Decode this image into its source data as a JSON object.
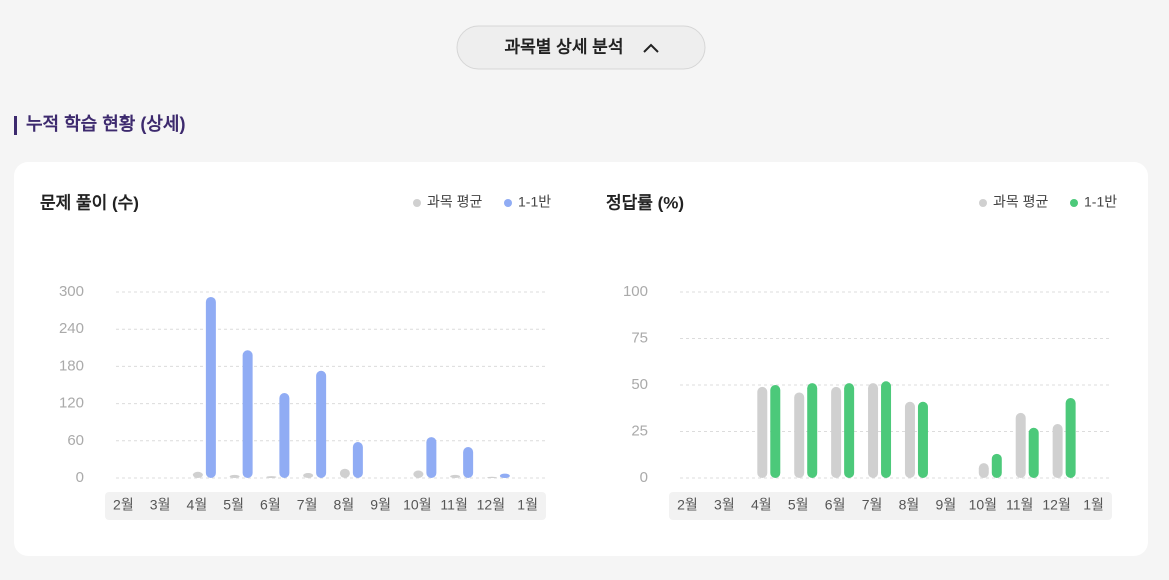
{
  "header": {
    "button": "과목별 상세 분석"
  },
  "section": {
    "title": "누적 학습 현황 (상세)"
  },
  "chart_data": [
    {
      "type": "bar",
      "title": "문제 풀이 (수)",
      "categories": [
        "2월",
        "3월",
        "4월",
        "5월",
        "6월",
        "7월",
        "8월",
        "9월",
        "10월",
        "11월",
        "12월",
        "1월"
      ],
      "series": [
        {
          "name": "과목 평균",
          "color": "#d0d0d0",
          "values": [
            null,
            null,
            10,
            5,
            3,
            8,
            15,
            null,
            12,
            5,
            2,
            null
          ]
        },
        {
          "name": "1-1반",
          "color": "#90acf4",
          "values": [
            null,
            null,
            292,
            206,
            137,
            173,
            58,
            null,
            66,
            50,
            7,
            null
          ]
        }
      ],
      "ylim": [
        0,
        300
      ],
      "yticks": [
        0,
        60,
        120,
        180,
        240,
        300
      ],
      "grid": true
    },
    {
      "type": "bar",
      "title": "정답률 (%)",
      "categories": [
        "2월",
        "3월",
        "4월",
        "5월",
        "6월",
        "7월",
        "8월",
        "9월",
        "10월",
        "11월",
        "12월",
        "1월"
      ],
      "series": [
        {
          "name": "과목 평균",
          "color": "#d0d0d0",
          "values": [
            null,
            null,
            49,
            46,
            49,
            51,
            41,
            null,
            8,
            35,
            29,
            null
          ]
        },
        {
          "name": "1-1반",
          "color": "#4cc97a",
          "values": [
            null,
            null,
            50,
            51,
            51,
            52,
            41,
            null,
            13,
            27,
            43,
            null
          ]
        }
      ],
      "ylim": [
        0,
        100
      ],
      "yticks": [
        0,
        25,
        50,
        75,
        100
      ],
      "grid": true
    }
  ]
}
